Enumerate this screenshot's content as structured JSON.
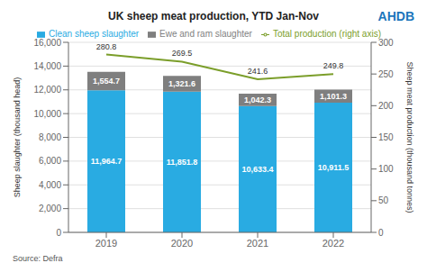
{
  "chart_data": {
    "type": "bar",
    "title": "UK sheep meat production, YTD Jan-Nov",
    "categories": [
      "2019",
      "2020",
      "2021",
      "2022"
    ],
    "stacked": true,
    "grid": true,
    "legend": "top",
    "ylabel": "Sheep slaughter (thousand head)",
    "y2label": "Sheep meat production (thousand tonnes)",
    "ylim": [
      0,
      16000
    ],
    "yticks": [
      0,
      {
        "value": 2000,
        "label": "2,000"
      },
      {
        "value": 4000,
        "label": "4,000"
      },
      {
        "value": 6000,
        "label": "6,000"
      },
      {
        "value": 8000,
        "label": "8,000"
      },
      {
        "value": 10000,
        "label": "10,000"
      },
      {
        "value": 12000,
        "label": "12,000"
      },
      {
        "value": 14000,
        "label": "14,000"
      },
      {
        "value": 16000,
        "label": "16,000"
      }
    ],
    "y2lim": [
      0,
      300
    ],
    "y2ticks": [
      0,
      50,
      100,
      150,
      200,
      250,
      300
    ],
    "series": [
      {
        "name": "Clean sheep slaughter",
        "type": "bar",
        "color": "#29ABE2",
        "values": [
          11964.7,
          11851.8,
          10633.4,
          10911.5
        ],
        "value_labels": [
          "11,964.7",
          "11,851.8",
          "10,633.4",
          "10,911.5"
        ],
        "data_labels": true
      },
      {
        "name": "Ewe and ram slaughter",
        "type": "bar",
        "color": "#7F7F7F",
        "values": [
          1554.7,
          1321.6,
          1042.3,
          1101.3
        ],
        "value_labels": [
          "1,554.7",
          "1,321.6",
          "1,042.3",
          "1,101.3"
        ],
        "data_labels": true
      },
      {
        "name": "Total production (right axis)",
        "type": "line",
        "axis": "y2",
        "color": "#7B9E2A",
        "values": [
          280.8,
          269.5,
          241.6,
          249.8
        ],
        "data_labels": true
      }
    ],
    "annotations": [
      {
        "text": "Source: Defra"
      },
      {
        "text": "AHDB",
        "color": "#1B75BB"
      }
    ]
  }
}
